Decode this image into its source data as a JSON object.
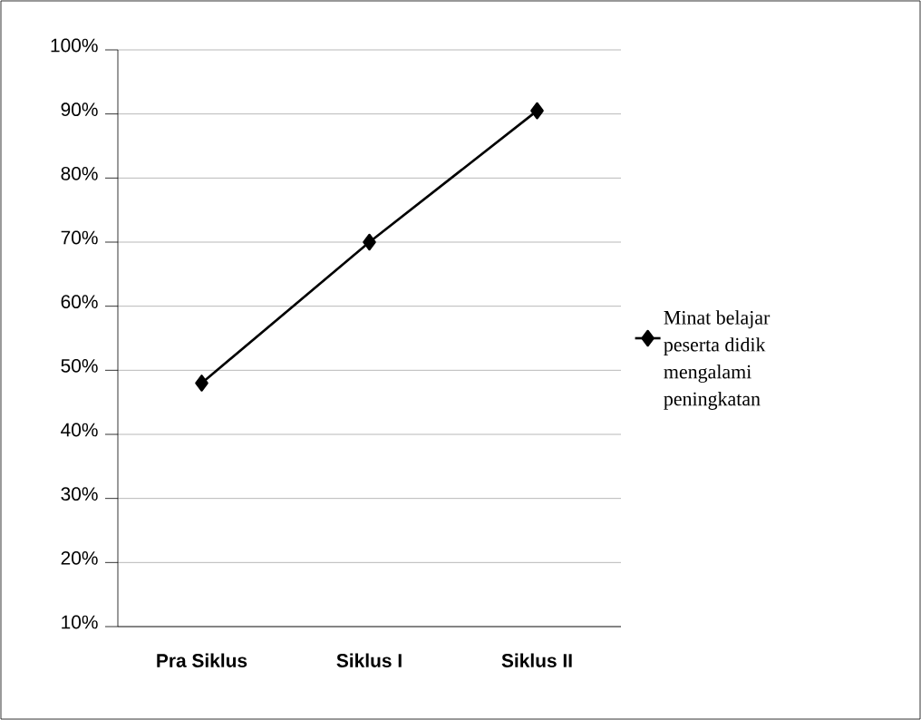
{
  "chart_data": {
    "type": "line",
    "categories": [
      "Pra Siklus",
      "Siklus I",
      "Siklus II"
    ],
    "series": [
      {
        "name": "Minat belajar peserta didik mengalami peningkatan",
        "color": "#000000",
        "values": [
          48,
          70,
          90.5
        ]
      }
    ],
    "ylim": [
      10,
      100
    ],
    "yticks": [
      {
        "value": 10,
        "label": "10%"
      },
      {
        "value": 20,
        "label": "20%"
      },
      {
        "value": 30,
        "label": "30%"
      },
      {
        "value": 40,
        "label": "40%"
      },
      {
        "value": 50,
        "label": "50%"
      },
      {
        "value": 60,
        "label": "60%"
      },
      {
        "value": 70,
        "label": "70%"
      },
      {
        "value": 80,
        "label": "80%"
      },
      {
        "value": 90,
        "label": "90%"
      },
      {
        "value": 100,
        "label": "100%"
      }
    ],
    "grid": "y",
    "legend": "right",
    "marker": "diamond",
    "line_style": "solid"
  }
}
